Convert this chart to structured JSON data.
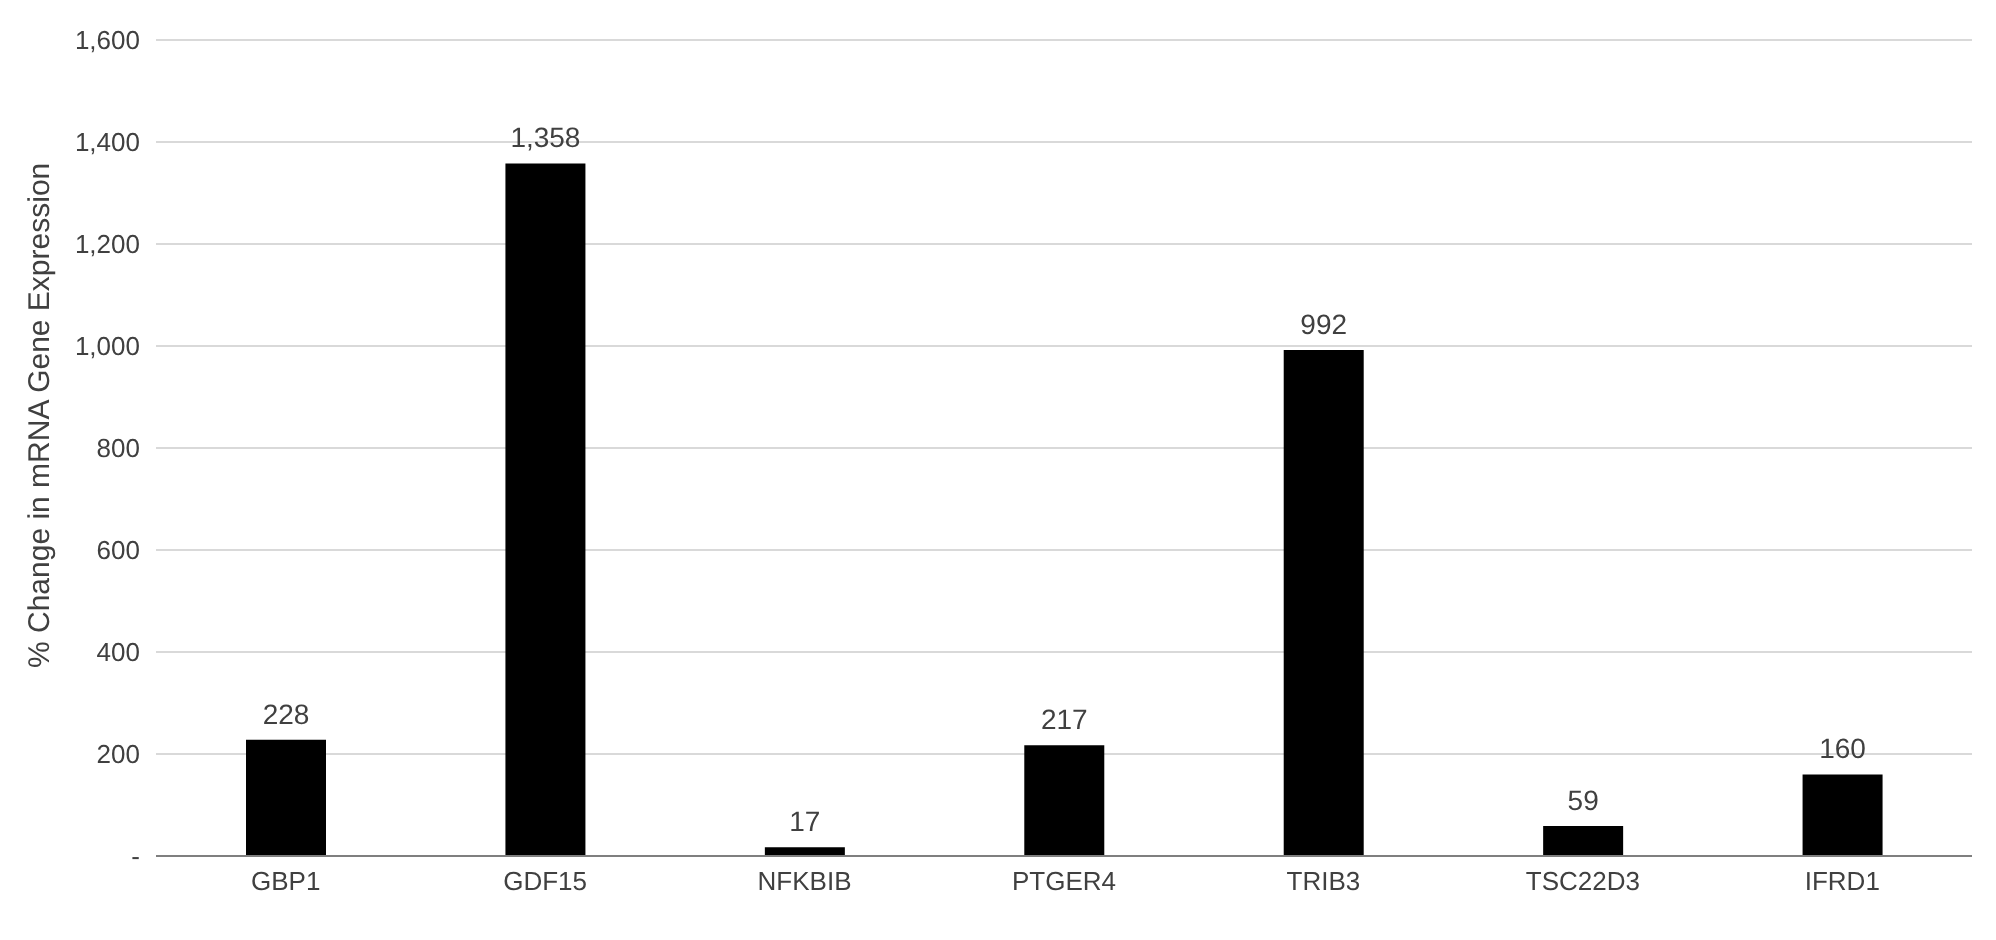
{
  "chart_data": {
    "type": "bar",
    "ylabel": "% Change in mRNA Gene Expression",
    "categories": [
      "GBP1",
      "GDF15",
      "NFKBIB",
      "PTGER4",
      "TRIB3",
      "TSC22D3",
      "IFRD1"
    ],
    "values": [
      228,
      1358,
      17,
      217,
      992,
      59,
      160
    ],
    "value_labels": [
      "228",
      "1,358",
      "17",
      "217",
      "992",
      "59",
      "160"
    ],
    "color": "#000000",
    "ylim": [
      0,
      1600
    ],
    "yticks": [
      {
        "value": 0,
        "label": "-"
      },
      {
        "value": 200,
        "label": "200"
      },
      {
        "value": 400,
        "label": "400"
      },
      {
        "value": 600,
        "label": "600"
      },
      {
        "value": 800,
        "label": "800"
      },
      {
        "value": 1000,
        "label": "1,000"
      },
      {
        "value": 1200,
        "label": "1,200"
      },
      {
        "value": 1400,
        "label": "1,400"
      },
      {
        "value": 1600,
        "label": "1,600"
      }
    ],
    "grid": "y"
  }
}
